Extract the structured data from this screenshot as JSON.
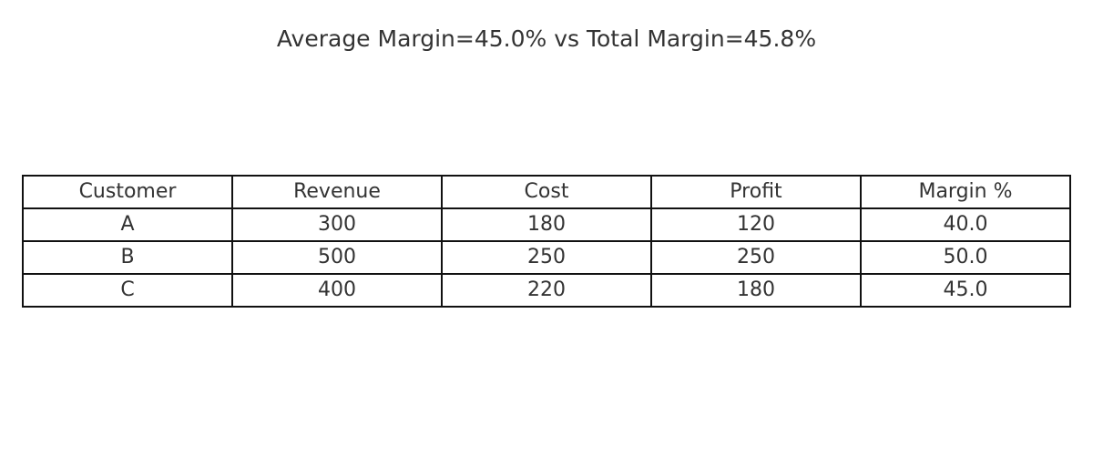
{
  "title": "Average Margin=45.0% vs Total Margin=45.8%",
  "chart_data": {
    "type": "table",
    "title": "Average Margin=45.0% vs Total Margin=45.8%",
    "columns": [
      "Customer",
      "Revenue",
      "Cost",
      "Profit",
      "Margin %"
    ],
    "rows": [
      [
        "A",
        "300",
        "180",
        "120",
        "40.0"
      ],
      [
        "B",
        "500",
        "250",
        "250",
        "50.0"
      ],
      [
        "C",
        "400",
        "220",
        "180",
        "45.0"
      ]
    ]
  }
}
